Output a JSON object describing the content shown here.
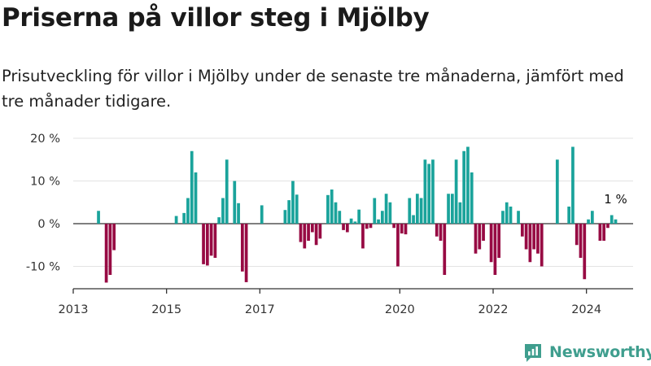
{
  "header": {
    "title": "Priserna på villor steg i Mjölby",
    "subtitle": "Prisutveckling för villor i Mjölby under de senaste tre månaderna, jämfört med tre månader tidigare."
  },
  "brand": {
    "name": "Newsworthy",
    "icon": "newsworthy-logo-icon",
    "color": "#3f9e8e"
  },
  "colors": {
    "positive": "#1aa39b",
    "negative": "#970a43",
    "grid": "#e3e3e3",
    "axis": "#333333",
    "tick_text": "#333333"
  },
  "chart_data": {
    "type": "bar",
    "ylabel": "",
    "ylim": [
      -15,
      20
    ],
    "y_ticks": [
      {
        "value": 20,
        "label": "20 %"
      },
      {
        "value": 10,
        "label": "10 %"
      },
      {
        "value": 0,
        "label": "0 %"
      },
      {
        "value": -10,
        "label": "-10 %"
      }
    ],
    "x_ticks": [
      "2013",
      "2015",
      "2017",
      "2020",
      "2022",
      "2024"
    ],
    "grid": true,
    "annotation": {
      "text": "1 %",
      "x": "2024-08",
      "value": 1
    },
    "x": [
      "2013-07",
      "2013-08",
      "2013-09",
      "2013-10",
      "2013-11",
      "2013-12",
      "2014-01",
      "2014-02",
      "2014-03",
      "2014-04",
      "2014-05",
      "2014-06",
      "2014-07",
      "2014-08",
      "2014-09",
      "2014-10",
      "2014-11",
      "2014-12",
      "2015-01",
      "2015-02",
      "2015-03",
      "2015-04",
      "2015-05",
      "2015-06",
      "2015-07",
      "2015-08",
      "2015-09",
      "2015-10",
      "2015-11",
      "2015-12",
      "2016-01",
      "2016-02",
      "2016-03",
      "2016-04",
      "2016-05",
      "2016-06",
      "2016-07",
      "2016-08",
      "2016-09",
      "2016-10",
      "2016-11",
      "2016-12",
      "2017-01",
      "2017-02",
      "2017-03",
      "2017-04",
      "2017-05",
      "2017-06",
      "2017-07",
      "2017-08",
      "2017-09",
      "2017-10",
      "2017-11",
      "2017-12",
      "2018-01",
      "2018-02",
      "2018-03",
      "2018-04",
      "2018-05",
      "2018-06",
      "2018-07",
      "2018-08",
      "2018-09",
      "2018-10",
      "2018-11",
      "2018-12",
      "2019-01",
      "2019-02",
      "2019-03",
      "2019-04",
      "2019-05",
      "2019-06",
      "2019-07",
      "2019-08",
      "2019-09",
      "2019-10",
      "2019-11",
      "2019-12",
      "2020-01",
      "2020-02",
      "2020-03",
      "2020-04",
      "2020-05",
      "2020-06",
      "2020-07",
      "2020-08",
      "2020-09",
      "2020-10",
      "2020-11",
      "2020-12",
      "2021-01",
      "2021-02",
      "2021-03",
      "2021-04",
      "2021-05",
      "2021-06",
      "2021-07",
      "2021-08",
      "2021-09",
      "2021-10",
      "2021-11",
      "2021-12",
      "2022-01",
      "2022-02",
      "2022-03",
      "2022-04",
      "2022-05",
      "2022-06",
      "2022-07",
      "2022-08",
      "2022-09",
      "2022-10",
      "2022-11",
      "2022-12",
      "2023-01",
      "2023-02",
      "2023-03",
      "2023-04",
      "2023-05",
      "2023-06",
      "2023-07",
      "2023-08",
      "2023-09",
      "2023-10",
      "2023-11",
      "2023-12",
      "2024-01",
      "2024-02",
      "2024-03",
      "2024-04",
      "2024-05",
      "2024-06",
      "2024-07",
      "2024-08"
    ],
    "values": [
      3,
      null,
      -13.8,
      -12,
      -6.2,
      null,
      null,
      null,
      null,
      null,
      null,
      null,
      null,
      null,
      null,
      null,
      null,
      null,
      null,
      null,
      1.8,
      null,
      2.5,
      6,
      17,
      12,
      null,
      -9.5,
      -9.8,
      -7.5,
      -8,
      1.5,
      6,
      15,
      null,
      10,
      4.8,
      -11.2,
      -13.7,
      null,
      null,
      null,
      4.3,
      null,
      null,
      null,
      null,
      null,
      3.2,
      5.5,
      10,
      6.8,
      -4.3,
      -5.8,
      -4,
      -2,
      -5,
      -3.5,
      null,
      6.7,
      8,
      5,
      3,
      -1.5,
      -2,
      1.2,
      0.5,
      3.3,
      -5.8,
      -1.2,
      -1,
      6,
      1,
      3,
      7,
      5,
      -1,
      -10,
      -2.3,
      -2.5,
      6,
      2,
      7,
      6,
      15,
      14,
      15,
      -3,
      -4,
      -12,
      7,
      7,
      15,
      5,
      17,
      18,
      12,
      -7,
      -6,
      -4,
      null,
      -9,
      -12,
      -8,
      3,
      5,
      4,
      null,
      3,
      -3,
      -6,
      -9,
      -6,
      -7,
      -10,
      null,
      null,
      null,
      15,
      null,
      null,
      4,
      18,
      -5,
      -8,
      -13,
      1,
      3,
      null,
      -4,
      -4,
      -1,
      2,
      1
    ]
  }
}
